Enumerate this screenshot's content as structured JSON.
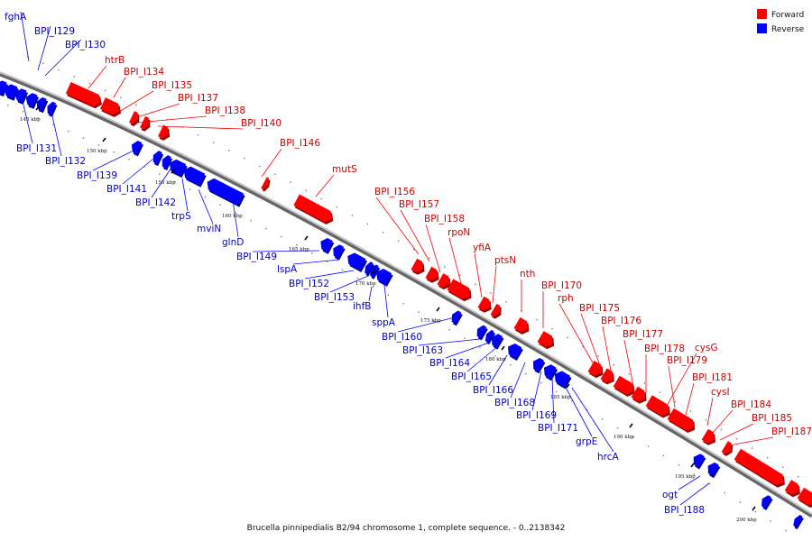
{
  "caption": "Brucella pinnipedialis B2/94 chromosome 1, complete sequence. - 0..2138342",
  "legend": [
    {
      "label": "Forward",
      "color": "#ff0000"
    },
    {
      "label": "Reverse",
      "color": "#0000ff"
    }
  ],
  "colors": {
    "forward": "#ff0000",
    "forward_dark": "#990000",
    "reverse": "#0000ff",
    "reverse_dark": "#000099",
    "backbone": "#888888"
  },
  "scale_labels": [
    "145 kbp",
    "150 kbp",
    "155 kbp",
    "160 kbp",
    "165 kbp",
    "170 kbp",
    "175 kbp",
    "180 kbp",
    "185 kbp",
    "190 kbp",
    "195 kbp",
    "200 kbp"
  ],
  "forward_labels": [
    "htrB",
    "BPI_I134",
    "BPI_I135",
    "BPI_I137",
    "BPI_I138",
    "BPI_I140",
    "BPI_I146",
    "mutS",
    "BPI_I156",
    "BPI_I157",
    "BPI_I158",
    "rpoN",
    "yfiA",
    "ptsN",
    "nth",
    "BPI_I170",
    "rph",
    "BPI_I175",
    "BPI_I176",
    "BPI_I177",
    "BPI_I178",
    "cysG",
    "BPI_I179",
    "BPI_I181",
    "cysI",
    "BPI_I184",
    "BPI_I185",
    "BPI_I187"
  ],
  "reverse_labels": [
    "fghA",
    "BPI_I129",
    "BPI_I130",
    "BPI_I131",
    "BPI_I132",
    "BPI_I139",
    "BPI_I141",
    "BPI_I142",
    "trpS",
    "mviN",
    "glnD",
    "BPI_I149",
    "lspA",
    "BPI_I152",
    "BPI_I153",
    "ihfB",
    "sppA",
    "BPI_I160",
    "BPI_I163",
    "BPI_I164",
    "BPI_I165",
    "BPI_I166",
    "BPI_I168",
    "BPI_I169",
    "BPI_I171",
    "grpE",
    "hrcA",
    "ogt",
    "BPI_I188"
  ]
}
